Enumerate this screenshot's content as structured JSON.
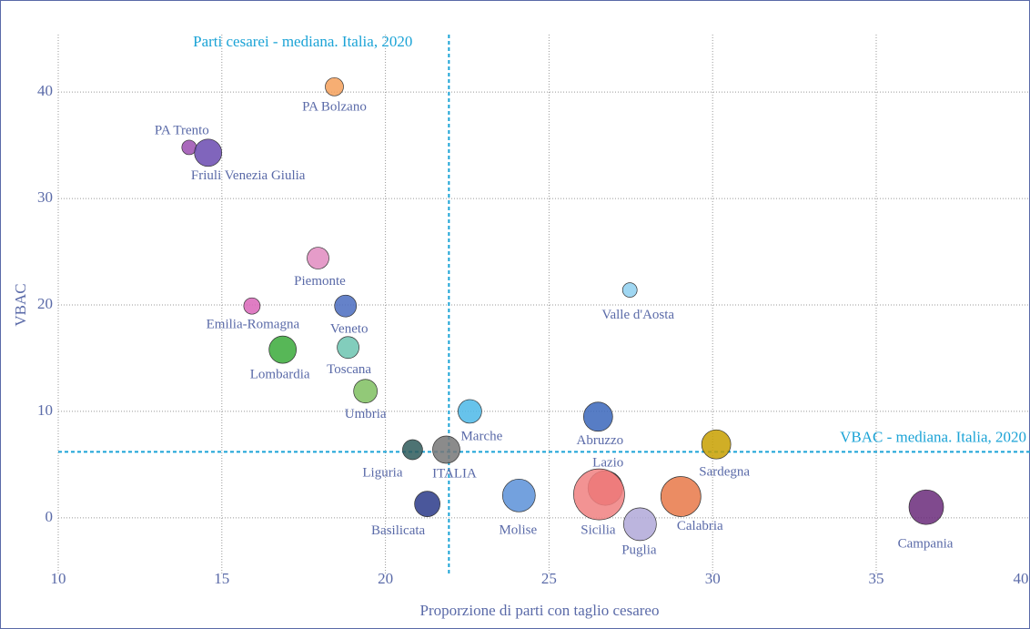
{
  "chart_data": {
    "type": "scatter",
    "xlabel": "Proporzione di parti con taglio cesareo",
    "ylabel": "VBAC",
    "xlim": [
      10,
      39.7
    ],
    "ylim": [
      -5.4,
      45.4
    ],
    "xticks": [
      10,
      15,
      20,
      25,
      30,
      35,
      40
    ],
    "yticks": [
      0,
      10,
      20,
      30,
      40
    ],
    "grid": true,
    "points": {
      "labels": [
        "PA Bolzano",
        "PA Trento",
        "Friuli Venezia Giulia",
        "Piemonte",
        "Emilia-Romagna",
        "Veneto",
        "Toscana",
        "Lombardia",
        "Umbria",
        "Marche",
        "Valle d'Aosta",
        "Abruzzo",
        "Sardegna",
        "Liguria",
        "ITALIA",
        "Lazio",
        "Sicilia",
        "Calabria",
        "Molise",
        "Basilicata",
        "Puglia",
        "Campania"
      ],
      "x": [
        18.44,
        14.0,
        14.58,
        17.94,
        15.92,
        18.78,
        18.86,
        16.86,
        19.39,
        22.58,
        27.47,
        26.5,
        30.11,
        20.83,
        21.86,
        26.72,
        26.53,
        29.03,
        24.08,
        21.28,
        27.78,
        36.53
      ],
      "y": [
        40.5,
        34.8,
        34.3,
        24.4,
        19.9,
        19.9,
        16.0,
        15.8,
        11.9,
        10.0,
        21.4,
        9.5,
        6.9,
        6.4,
        6.4,
        2.8,
        2.2,
        2.0,
        2.1,
        1.3,
        -0.6,
        1.0
      ],
      "sizes": [
        10,
        8,
        15,
        12,
        9,
        12,
        12,
        15,
        13,
        13,
        8,
        16,
        16,
        11,
        15,
        19,
        28,
        22,
        18,
        14,
        18,
        19
      ],
      "colors": [
        "#f5a05a",
        "#9b4fb0",
        "#6a4ab0",
        "#e08bc0",
        "#d966b8",
        "#4a6cc0",
        "#6cc4b0",
        "#3aaa3a",
        "#7fc060",
        "#4cb8e8",
        "#8fd0f0",
        "#3a66bb",
        "#c8a000",
        "#2e5a5a",
        "#777777",
        "#e04848",
        "#f08080",
        "#e87848",
        "#5a90d8",
        "#2a3a8a",
        "#b0a8d8",
        "#6a2a7a"
      ]
    },
    "vline": {
      "value": 21.94,
      "label": "Parti cesarei - mediana. Italia, 2020"
    },
    "hline": {
      "value": 6.2,
      "label": "VBAC - mediana. Italia, 2020"
    },
    "median_color": "#1ba3d6"
  }
}
